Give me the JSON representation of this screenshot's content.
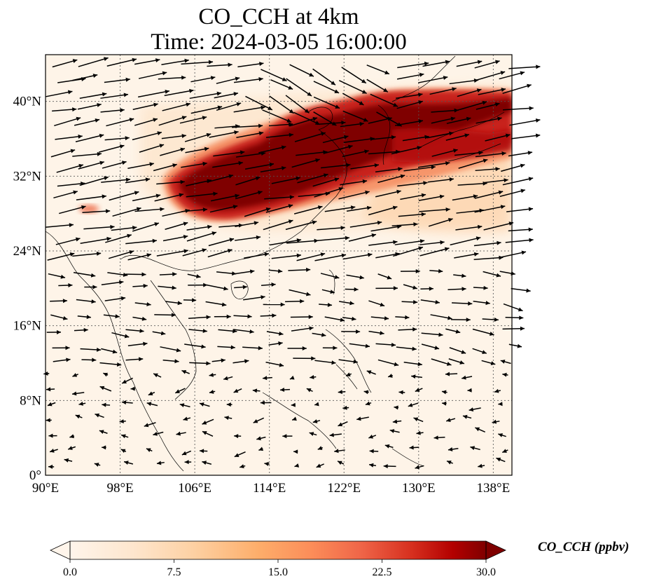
{
  "title": {
    "line1": "CO_CCH at 4km",
    "line2": "Time: 2024-03-05 16:00:00"
  },
  "map": {
    "lon_range": [
      90,
      140
    ],
    "lat_range": [
      0,
      45
    ],
    "lon_ticks": [
      {
        "value": 90,
        "label": "90°E"
      },
      {
        "value": 98,
        "label": "98°E"
      },
      {
        "value": 106,
        "label": "106°E"
      },
      {
        "value": 114,
        "label": "114°E"
      },
      {
        "value": 122,
        "label": "122°E"
      },
      {
        "value": 130,
        "label": "130°E"
      },
      {
        "value": 138,
        "label": "138°E"
      }
    ],
    "lat_ticks": [
      {
        "value": 0,
        "label": "0°"
      },
      {
        "value": 8,
        "label": "8°N"
      },
      {
        "value": 16,
        "label": "16°N"
      },
      {
        "value": 24,
        "label": "24°N"
      },
      {
        "value": 32,
        "label": "32°N"
      },
      {
        "value": 40,
        "label": "40°N"
      }
    ],
    "gridlines": true,
    "wind_vectors": "black arrows",
    "plume_color_max": "#7a0000"
  },
  "colorbar": {
    "label": "CO_CCH (ppbv)",
    "min": 0,
    "max": 30,
    "extend": "both",
    "ticks": [
      {
        "value": 0,
        "label": "0.0"
      },
      {
        "value": 7.5,
        "label": "7.5"
      },
      {
        "value": 15,
        "label": "15.0"
      },
      {
        "value": 22.5,
        "label": "22.5"
      },
      {
        "value": 30,
        "label": "30.0"
      }
    ],
    "colors": [
      "#fff5eb",
      "#fee6ce",
      "#fdd0a2",
      "#fdae6b",
      "#fd8d3c",
      "#f16913",
      "#d94801",
      "#a63603",
      "#7f0000"
    ]
  }
}
